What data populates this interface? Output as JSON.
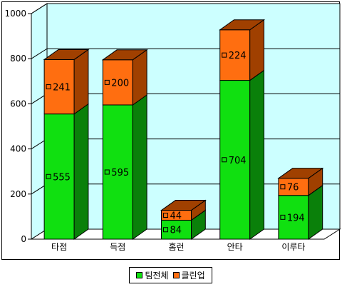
{
  "chart_data": {
    "type": "bar",
    "stacked": true,
    "three_d": true,
    "categories": [
      "타점",
      "득점",
      "홈런",
      "안타",
      "이루타"
    ],
    "series": [
      {
        "name": "팀전체",
        "values": [
          555,
          595,
          84,
          704,
          194
        ],
        "color": "#10e010",
        "side": "#0a800a"
      },
      {
        "name": "클린업",
        "values": [
          241,
          200,
          44,
          224,
          76
        ],
        "color": "#ff6e10",
        "side": "#a04000"
      }
    ],
    "ylim": [
      0,
      1000
    ],
    "yticks": [
      0,
      200,
      400,
      600,
      800,
      1000
    ],
    "grid": true,
    "legend": "bottom",
    "wall_color": "#ccffff"
  }
}
